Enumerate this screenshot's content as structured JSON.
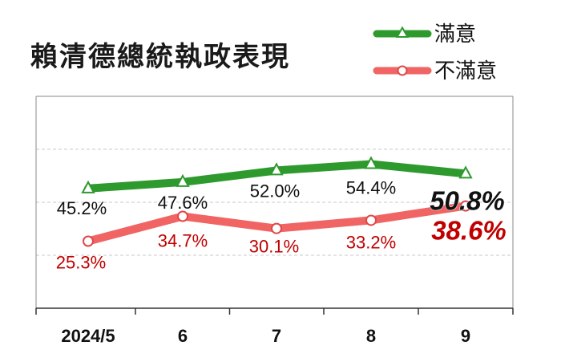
{
  "chart_data": {
    "type": "line",
    "title": "賴清德總統執政表現",
    "categories": [
      "2024/5",
      "6",
      "7",
      "8",
      "9"
    ],
    "ylim": [
      0,
      80
    ],
    "grid": true,
    "legend": "top-right",
    "series": [
      {
        "name": "滿意",
        "values": [
          45.2,
          47.6,
          52.0,
          54.4,
          50.8
        ],
        "labels": [
          "45.2%",
          "47.6%",
          "52.0%",
          "54.4%",
          "50.8%"
        ],
        "color": "#2e9a2e",
        "label_color": "#111111",
        "marker": "triangle"
      },
      {
        "name": "不滿意",
        "values": [
          25.3,
          34.7,
          30.1,
          33.2,
          38.6
        ],
        "labels": [
          "25.3%",
          "34.7%",
          "30.1%",
          "33.2%",
          "38.6%"
        ],
        "color": "#f06464",
        "label_color": "#c00000",
        "marker": "circle"
      }
    ]
  }
}
